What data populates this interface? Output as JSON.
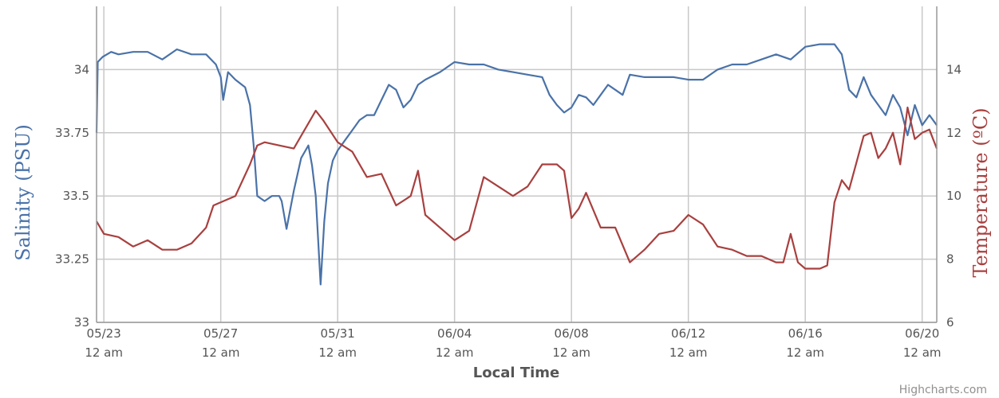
{
  "credit": "Highcharts.com",
  "colors": {
    "salinity": "#4a72a8",
    "temperature": "#a8403f",
    "grid": "#c8c8c8",
    "axis_line": "#999999"
  },
  "chart_data": {
    "type": "line",
    "xlabel": "Local Time",
    "ylabel_left": "Salinity (PSU)",
    "ylabel_right": "Temperature (ºC)",
    "x_range": [
      "05/22 18:00",
      "06/20 12:00"
    ],
    "ylim_left": [
      33,
      34.25
    ],
    "ylim_right": [
      6,
      16
    ],
    "grid": true,
    "x_ticks": [
      {
        "date": "05/23 00:00",
        "line1": "05/23",
        "line2": "12 am"
      },
      {
        "date": "05/27 00:00",
        "line1": "05/27",
        "line2": "12 am"
      },
      {
        "date": "05/31 00:00",
        "line1": "05/31",
        "line2": "12 am"
      },
      {
        "date": "06/04 00:00",
        "line1": "06/04",
        "line2": "12 am"
      },
      {
        "date": "06/08 00:00",
        "line1": "06/08",
        "line2": "12 am"
      },
      {
        "date": "06/12 00:00",
        "line1": "06/12",
        "line2": "12 am"
      },
      {
        "date": "06/16 00:00",
        "line1": "06/16",
        "line2": "12 am"
      },
      {
        "date": "06/20 00:00",
        "line1": "06/20",
        "line2": "12 am"
      }
    ],
    "y_ticks_left": [
      {
        "value": 33,
        "label": "33"
      },
      {
        "value": 33.25,
        "label": "33.25"
      },
      {
        "value": 33.5,
        "label": "33.5"
      },
      {
        "value": 33.75,
        "label": "33.75"
      },
      {
        "value": 34,
        "label": "34"
      }
    ],
    "y_ticks_right": [
      {
        "value": 6,
        "label": "6"
      },
      {
        "value": 8,
        "label": "8"
      },
      {
        "value": 10,
        "label": "10"
      },
      {
        "value": 12,
        "label": "12"
      },
      {
        "value": 14,
        "label": "14"
      }
    ],
    "series": [
      {
        "axis": "left",
        "color": "#4a72a8",
        "points": [
          [
            "05/22 18:00",
            33.75
          ],
          [
            "05/22 19:00",
            34.03
          ],
          [
            "05/22 23:00",
            34.05
          ],
          [
            "05/23 06:00",
            34.07
          ],
          [
            "05/23 12:00",
            34.06
          ],
          [
            "05/24 00:00",
            34.07
          ],
          [
            "05/24 12:00",
            34.07
          ],
          [
            "05/25 00:00",
            34.04
          ],
          [
            "05/25 12:00",
            34.08
          ],
          [
            "05/26 00:00",
            34.06
          ],
          [
            "05/26 12:00",
            34.06
          ],
          [
            "05/26 20:00",
            34.02
          ],
          [
            "05/27 00:00",
            33.97
          ],
          [
            "05/27 02:00",
            33.88
          ],
          [
            "05/27 06:00",
            33.99
          ],
          [
            "05/27 12:00",
            33.96
          ],
          [
            "05/27 20:00",
            33.93
          ],
          [
            "05/28 00:00",
            33.86
          ],
          [
            "05/28 03:00",
            33.7
          ],
          [
            "05/28 06:00",
            33.5
          ],
          [
            "05/28 12:00",
            33.48
          ],
          [
            "05/28 18:00",
            33.5
          ],
          [
            "05/29 00:00",
            33.5
          ],
          [
            "05/29 02:00",
            33.48
          ],
          [
            "05/29 06:00",
            33.37
          ],
          [
            "05/29 12:00",
            33.52
          ],
          [
            "05/29 18:00",
            33.65
          ],
          [
            "05/30 00:00",
            33.7
          ],
          [
            "05/30 03:00",
            33.62
          ],
          [
            "05/30 06:00",
            33.5
          ],
          [
            "05/30 10:00",
            33.15
          ],
          [
            "05/30 13:00",
            33.4
          ],
          [
            "05/30 16:00",
            33.55
          ],
          [
            "05/30 20:00",
            33.64
          ],
          [
            "05/31 00:00",
            33.68
          ],
          [
            "05/31 06:00",
            33.72
          ],
          [
            "05/31 12:00",
            33.76
          ],
          [
            "05/31 18:00",
            33.8
          ],
          [
            "06/01 00:00",
            33.82
          ],
          [
            "06/01 06:00",
            33.82
          ],
          [
            "06/01 12:00",
            33.88
          ],
          [
            "06/01 18:00",
            33.94
          ],
          [
            "06/02 00:00",
            33.92
          ],
          [
            "06/02 06:00",
            33.85
          ],
          [
            "06/02 12:00",
            33.88
          ],
          [
            "06/02 18:00",
            33.94
          ],
          [
            "06/03 00:00",
            33.96
          ],
          [
            "06/03 12:00",
            33.99
          ],
          [
            "06/04 00:00",
            34.03
          ],
          [
            "06/04 12:00",
            34.02
          ],
          [
            "06/05 00:00",
            34.02
          ],
          [
            "06/05 12:00",
            34.0
          ],
          [
            "06/06 00:00",
            33.99
          ],
          [
            "06/06 12:00",
            33.98
          ],
          [
            "06/07 00:00",
            33.97
          ],
          [
            "06/07 06:00",
            33.9
          ],
          [
            "06/07 12:00",
            33.86
          ],
          [
            "06/07 18:00",
            33.83
          ],
          [
            "06/08 00:00",
            33.85
          ],
          [
            "06/08 06:00",
            33.9
          ],
          [
            "06/08 12:00",
            33.89
          ],
          [
            "06/08 18:00",
            33.86
          ],
          [
            "06/09 00:00",
            33.9
          ],
          [
            "06/09 06:00",
            33.94
          ],
          [
            "06/09 12:00",
            33.92
          ],
          [
            "06/09 18:00",
            33.9
          ],
          [
            "06/10 00:00",
            33.98
          ],
          [
            "06/10 12:00",
            33.97
          ],
          [
            "06/11 00:00",
            33.97
          ],
          [
            "06/11 12:00",
            33.97
          ],
          [
            "06/12 00:00",
            33.96
          ],
          [
            "06/12 12:00",
            33.96
          ],
          [
            "06/13 00:00",
            34.0
          ],
          [
            "06/13 12:00",
            34.02
          ],
          [
            "06/14 00:00",
            34.02
          ],
          [
            "06/14 12:00",
            34.04
          ],
          [
            "06/15 00:00",
            34.06
          ],
          [
            "06/15 12:00",
            34.04
          ],
          [
            "06/16 00:00",
            34.09
          ],
          [
            "06/16 12:00",
            34.1
          ],
          [
            "06/17 00:00",
            34.1
          ],
          [
            "06/17 06:00",
            34.06
          ],
          [
            "06/17 12:00",
            33.92
          ],
          [
            "06/17 18:00",
            33.89
          ],
          [
            "06/18 00:00",
            33.97
          ],
          [
            "06/18 06:00",
            33.9
          ],
          [
            "06/18 12:00",
            33.86
          ],
          [
            "06/18 18:00",
            33.82
          ],
          [
            "06/19 00:00",
            33.9
          ],
          [
            "06/19 06:00",
            33.85
          ],
          [
            "06/19 12:00",
            33.74
          ],
          [
            "06/19 18:00",
            33.86
          ],
          [
            "06/20 00:00",
            33.78
          ],
          [
            "06/20 06:00",
            33.82
          ],
          [
            "06/20 12:00",
            33.78
          ]
        ]
      },
      {
        "axis": "right",
        "color": "#a8403f",
        "points": [
          [
            "05/22 18:00",
            9.2
          ],
          [
            "05/23 00:00",
            8.8
          ],
          [
            "05/23 12:00",
            8.7
          ],
          [
            "05/24 00:00",
            8.4
          ],
          [
            "05/24 12:00",
            8.6
          ],
          [
            "05/25 00:00",
            8.3
          ],
          [
            "05/25 12:00",
            8.3
          ],
          [
            "05/26 00:00",
            8.5
          ],
          [
            "05/26 12:00",
            9.0
          ],
          [
            "05/26 18:00",
            9.7
          ],
          [
            "05/27 00:00",
            9.8
          ],
          [
            "05/27 12:00",
            10.0
          ],
          [
            "05/28 00:00",
            11.0
          ],
          [
            "05/28 06:00",
            11.6
          ],
          [
            "05/28 12:00",
            11.7
          ],
          [
            "05/29 00:00",
            11.6
          ],
          [
            "05/29 12:00",
            11.5
          ],
          [
            "05/30 00:00",
            12.3
          ],
          [
            "05/30 06:00",
            12.7
          ],
          [
            "05/30 12:00",
            12.4
          ],
          [
            "05/31 00:00",
            11.7
          ],
          [
            "05/31 12:00",
            11.4
          ],
          [
            "06/01 00:00",
            10.6
          ],
          [
            "06/01 12:00",
            10.7
          ],
          [
            "06/02 00:00",
            9.7
          ],
          [
            "06/02 12:00",
            10.0
          ],
          [
            "06/02 18:00",
            10.8
          ],
          [
            "06/03 00:00",
            9.4
          ],
          [
            "06/03 12:00",
            9.0
          ],
          [
            "06/04 00:00",
            8.6
          ],
          [
            "06/04 12:00",
            8.9
          ],
          [
            "06/05 00:00",
            10.6
          ],
          [
            "06/05 12:00",
            10.3
          ],
          [
            "06/06 00:00",
            10.0
          ],
          [
            "06/06 12:00",
            10.3
          ],
          [
            "06/07 00:00",
            11.0
          ],
          [
            "06/07 12:00",
            11.0
          ],
          [
            "06/07 18:00",
            10.8
          ],
          [
            "06/08 00:00",
            9.3
          ],
          [
            "06/08 06:00",
            9.6
          ],
          [
            "06/08 12:00",
            10.1
          ],
          [
            "06/09 00:00",
            9.0
          ],
          [
            "06/09 12:00",
            9.0
          ],
          [
            "06/10 00:00",
            7.9
          ],
          [
            "06/10 12:00",
            8.3
          ],
          [
            "06/11 00:00",
            8.8
          ],
          [
            "06/11 12:00",
            8.9
          ],
          [
            "06/12 00:00",
            9.4
          ],
          [
            "06/12 12:00",
            9.1
          ],
          [
            "06/13 00:00",
            8.4
          ],
          [
            "06/13 12:00",
            8.3
          ],
          [
            "06/14 00:00",
            8.1
          ],
          [
            "06/14 12:00",
            8.1
          ],
          [
            "06/15 00:00",
            7.9
          ],
          [
            "06/15 06:00",
            7.9
          ],
          [
            "06/15 12:00",
            8.8
          ],
          [
            "06/15 18:00",
            7.9
          ],
          [
            "06/16 00:00",
            7.7
          ],
          [
            "06/16 12:00",
            7.7
          ],
          [
            "06/16 18:00",
            7.8
          ],
          [
            "06/17 00:00",
            9.8
          ],
          [
            "06/17 06:00",
            10.5
          ],
          [
            "06/17 12:00",
            10.2
          ],
          [
            "06/18 00:00",
            11.9
          ],
          [
            "06/18 06:00",
            12.0
          ],
          [
            "06/18 12:00",
            11.2
          ],
          [
            "06/18 18:00",
            11.5
          ],
          [
            "06/19 00:00",
            12.0
          ],
          [
            "06/19 06:00",
            11.0
          ],
          [
            "06/19 12:00",
            12.8
          ],
          [
            "06/19 18:00",
            11.8
          ],
          [
            "06/20 00:00",
            12.0
          ],
          [
            "06/20 06:00",
            12.1
          ],
          [
            "06/20 12:00",
            11.5
          ]
        ]
      }
    ]
  }
}
